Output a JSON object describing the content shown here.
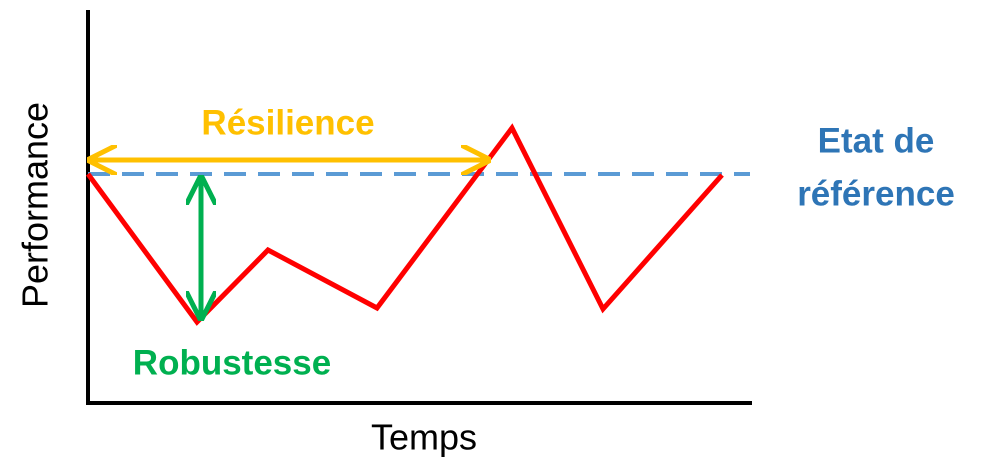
{
  "axes": {
    "y_label": "Performance",
    "x_label": "Temps"
  },
  "annotations": {
    "resilience": "Résilience",
    "robustness": "Robustesse",
    "reference": [
      "Etat de",
      "référence"
    ]
  }
}
